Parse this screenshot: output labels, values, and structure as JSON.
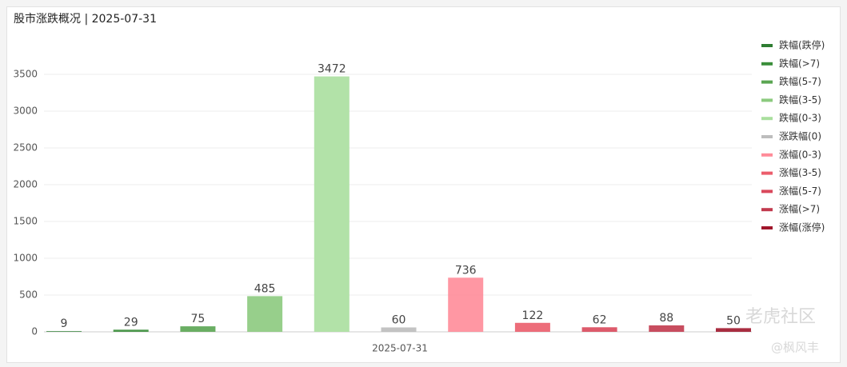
{
  "chart_data": {
    "type": "bar",
    "title": "股市涨跌概况 | 2025-07-31",
    "categories": [
      "2025-07-31"
    ],
    "series": [
      {
        "name": "跌幅(跌停)",
        "color": "#2e7d32",
        "values": [
          9
        ]
      },
      {
        "name": "跌幅(>7)",
        "color": "#3a8e3a",
        "values": [
          29
        ]
      },
      {
        "name": "跌幅(5-7)",
        "color": "#5aa552",
        "values": [
          75
        ]
      },
      {
        "name": "跌幅(3-5)",
        "color": "#8cca7e",
        "values": [
          485
        ]
      },
      {
        "name": "跌幅(0-3)",
        "color": "#aadf9e",
        "values": [
          3472
        ]
      },
      {
        "name": "涨跌幅(0)",
        "color": "#bdbdbd",
        "values": [
          60
        ]
      },
      {
        "name": "涨幅(0-3)",
        "color": "#ff8c99",
        "values": [
          736
        ]
      },
      {
        "name": "涨幅(3-5)",
        "color": "#eb5d6c",
        "values": [
          122
        ]
      },
      {
        "name": "涨幅(5-7)",
        "color": "#d9485b",
        "values": [
          62
        ]
      },
      {
        "name": "涨幅(>7)",
        "color": "#c23a4e",
        "values": [
          88
        ]
      },
      {
        "name": "涨幅(涨停)",
        "color": "#a0162b",
        "values": [
          50
        ]
      }
    ],
    "ylim": [
      0,
      3500
    ],
    "yticks": [
      0,
      500,
      1000,
      1500,
      2000,
      2500,
      3000,
      3500
    ],
    "grid": true,
    "legend": "right",
    "watermark": [
      "老虎社区",
      "@枫风丰"
    ]
  }
}
